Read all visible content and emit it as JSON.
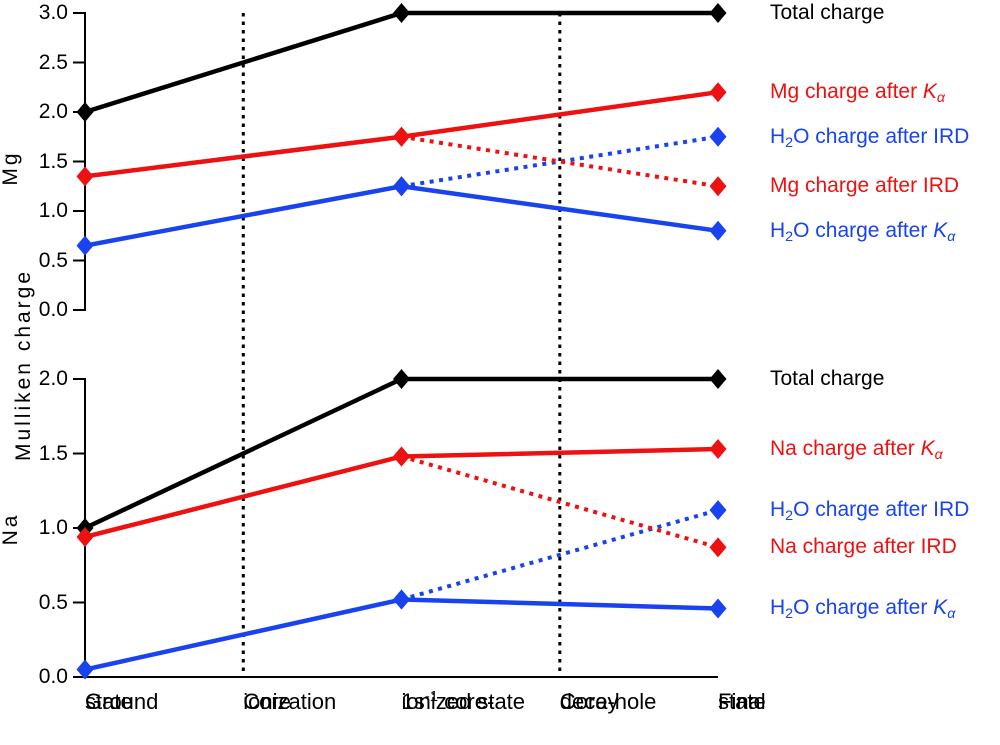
{
  "figure": {
    "shared_ylabel": "Mulliken charge",
    "colors": {
      "black": "#000000",
      "red": "#ee1111",
      "blue": "#1843ef"
    },
    "divider_cols": [
      1,
      3
    ]
  },
  "x_categories": [
    {
      "text": "Ground state",
      "lines": [
        [
          {
            "t": "Ground"
          }
        ],
        [
          {
            "t": "state"
          }
        ]
      ]
    },
    {
      "text": "Core ionization",
      "lines": [
        [
          {
            "t": "Core"
          }
        ],
        [
          {
            "t": "ionization"
          }
        ]
      ]
    },
    {
      "text": "1s-1 core-ionized state",
      "lines": [
        [
          {
            "t": "1s"
          },
          {
            "t": "-1",
            "sup": true
          },
          {
            "t": " core-"
          }
        ],
        [
          {
            "t": "ionized state"
          }
        ]
      ]
    },
    {
      "text": "Core-hole decay",
      "lines": [
        [
          {
            "t": "Core-hole"
          }
        ],
        [
          {
            "t": "decay"
          }
        ]
      ]
    },
    {
      "text": "Final state",
      "lines": [
        [
          {
            "t": "Final"
          }
        ],
        [
          {
            "t": "state"
          }
        ]
      ]
    }
  ],
  "chart_data": [
    {
      "type": "line",
      "panel_label": "Mg",
      "categories": [
        "Ground state",
        "Core ionization",
        "1s-1 core-ionized state",
        "Core-hole decay",
        "Final state"
      ],
      "ylim": [
        0,
        3
      ],
      "yticks": [
        "3.0",
        "2.5",
        "2.0",
        "1.5",
        "1.0",
        "0.5",
        "0.0"
      ],
      "legend_position": "right",
      "grid": false,
      "series": [
        {
          "name": "Total charge",
          "color": "black",
          "style": "solid",
          "x": [
            0,
            2,
            4
          ],
          "values": [
            2.0,
            3.0,
            3.0
          ],
          "label_parts": [
            {
              "t": "Total charge"
            }
          ]
        },
        {
          "name": "Mg charge after Ka",
          "color": "red",
          "style": "solid",
          "x": [
            0,
            2,
            4
          ],
          "values": [
            1.35,
            1.75,
            2.2
          ],
          "label_parts": [
            {
              "t": "Mg charge after "
            },
            {
              "t": "K",
              "i": true
            },
            {
              "t": "α",
              "i": true,
              "sub": true
            }
          ]
        },
        {
          "name": "H2O charge after IRD",
          "color": "blue",
          "style": "dotted",
          "x": [
            2,
            4
          ],
          "values": [
            1.25,
            1.75
          ],
          "label_parts": [
            {
              "t": "H"
            },
            {
              "t": "2",
              "sub": true
            },
            {
              "t": "O charge after IRD"
            }
          ]
        },
        {
          "name": "Mg charge after IRD",
          "color": "red",
          "style": "dotted",
          "x": [
            2,
            4
          ],
          "values": [
            1.75,
            1.25
          ],
          "label_parts": [
            {
              "t": "Mg charge after IRD"
            }
          ]
        },
        {
          "name": "H2O charge after Ka",
          "color": "blue",
          "style": "solid",
          "x": [
            0,
            2,
            4
          ],
          "values": [
            0.65,
            1.25,
            0.8
          ],
          "label_parts": [
            {
              "t": "H"
            },
            {
              "t": "2",
              "sub": true
            },
            {
              "t": "O charge after "
            },
            {
              "t": "K",
              "i": true
            },
            {
              "t": "α",
              "i": true,
              "sub": true
            }
          ]
        }
      ]
    },
    {
      "type": "line",
      "panel_label": "Na",
      "categories": [
        "Ground state",
        "Core ionization",
        "1s-1 core-ionized state",
        "Core-hole decay",
        "Final state"
      ],
      "ylim": [
        0,
        2
      ],
      "yticks": [
        "2.0",
        "1.5",
        "1.0",
        "0.5",
        "0.0"
      ],
      "legend_position": "right",
      "grid": false,
      "series": [
        {
          "name": "Total charge",
          "color": "black",
          "style": "solid",
          "x": [
            0,
            2,
            4
          ],
          "values": [
            1.0,
            2.0,
            2.0
          ],
          "label_parts": [
            {
              "t": "Total charge"
            }
          ]
        },
        {
          "name": "Na charge after Ka",
          "color": "red",
          "style": "solid",
          "x": [
            0,
            2,
            4
          ],
          "values": [
            0.94,
            1.48,
            1.53
          ],
          "label_parts": [
            {
              "t": "Na charge after "
            },
            {
              "t": "K",
              "i": true
            },
            {
              "t": "α",
              "i": true,
              "sub": true
            }
          ]
        },
        {
          "name": "H2O charge after IRD",
          "color": "blue",
          "style": "dotted",
          "x": [
            2,
            4
          ],
          "values": [
            0.52,
            1.12
          ],
          "label_parts": [
            {
              "t": "H"
            },
            {
              "t": "2",
              "sub": true
            },
            {
              "t": "O charge after IRD"
            }
          ]
        },
        {
          "name": "Na charge after IRD",
          "color": "red",
          "style": "dotted",
          "x": [
            2,
            4
          ],
          "values": [
            1.48,
            0.87
          ],
          "label_parts": [
            {
              "t": "Na charge after IRD"
            }
          ]
        },
        {
          "name": "H2O charge after Ka",
          "color": "blue",
          "style": "solid",
          "x": [
            0,
            2,
            4
          ],
          "values": [
            0.05,
            0.52,
            0.46
          ],
          "label_parts": [
            {
              "t": "H"
            },
            {
              "t": "2",
              "sub": true
            },
            {
              "t": "O charge after "
            },
            {
              "t": "K",
              "i": true
            },
            {
              "t": "α",
              "i": true,
              "sub": true
            }
          ]
        }
      ]
    }
  ]
}
